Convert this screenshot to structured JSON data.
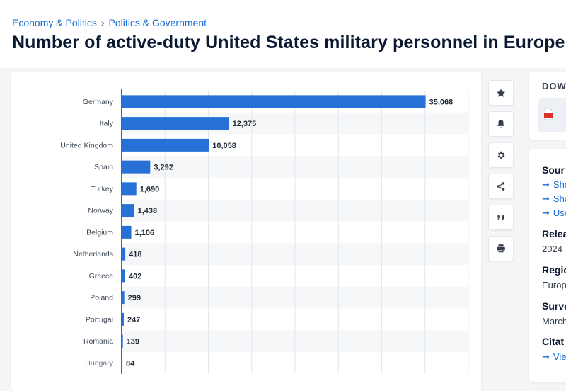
{
  "breadcrumb": {
    "items": [
      "Economy & Politics",
      "Politics & Government"
    ],
    "separator": "›"
  },
  "title": "Number of active-duty United States military personnel in Europe",
  "toolbar": {
    "buttons": [
      "star-icon",
      "bell-icon",
      "gear-icon",
      "share-icon",
      "quote-icon",
      "print-icon"
    ]
  },
  "download": {
    "title": "DOW"
  },
  "info": {
    "source_heading": "Sour",
    "source_links": [
      "Sho",
      "Sho",
      "Use"
    ],
    "release_heading": "Relea",
    "release_value": "2024",
    "region_heading": "Regio",
    "region_value": "Europ",
    "survey_heading": "Surve",
    "survey_value": "March",
    "citation_heading": "Citat",
    "citation_link": "Vie"
  },
  "colors": {
    "bar": "#2771d6",
    "link": "#1a6cd1",
    "title": "#0b1a33"
  },
  "chart_data": {
    "type": "bar",
    "orientation": "horizontal",
    "categories": [
      "Germany",
      "Italy",
      "United Kingdom",
      "Spain",
      "Turkey",
      "Norway",
      "Belgium",
      "Netherlands",
      "Greece",
      "Poland",
      "Portugal",
      "Romania",
      "Hungary"
    ],
    "values": [
      35068,
      12375,
      10058,
      3292,
      1690,
      1438,
      1106,
      418,
      402,
      299,
      247,
      139,
      84
    ],
    "value_labels": [
      "35,068",
      "12,375",
      "10,058",
      "3,292",
      "1,690",
      "1,438",
      "1,106",
      "418",
      "402",
      "299",
      "247",
      "139",
      "84"
    ],
    "xlim": [
      0,
      40000
    ],
    "grid": true,
    "title": "",
    "xlabel": "",
    "ylabel": ""
  }
}
